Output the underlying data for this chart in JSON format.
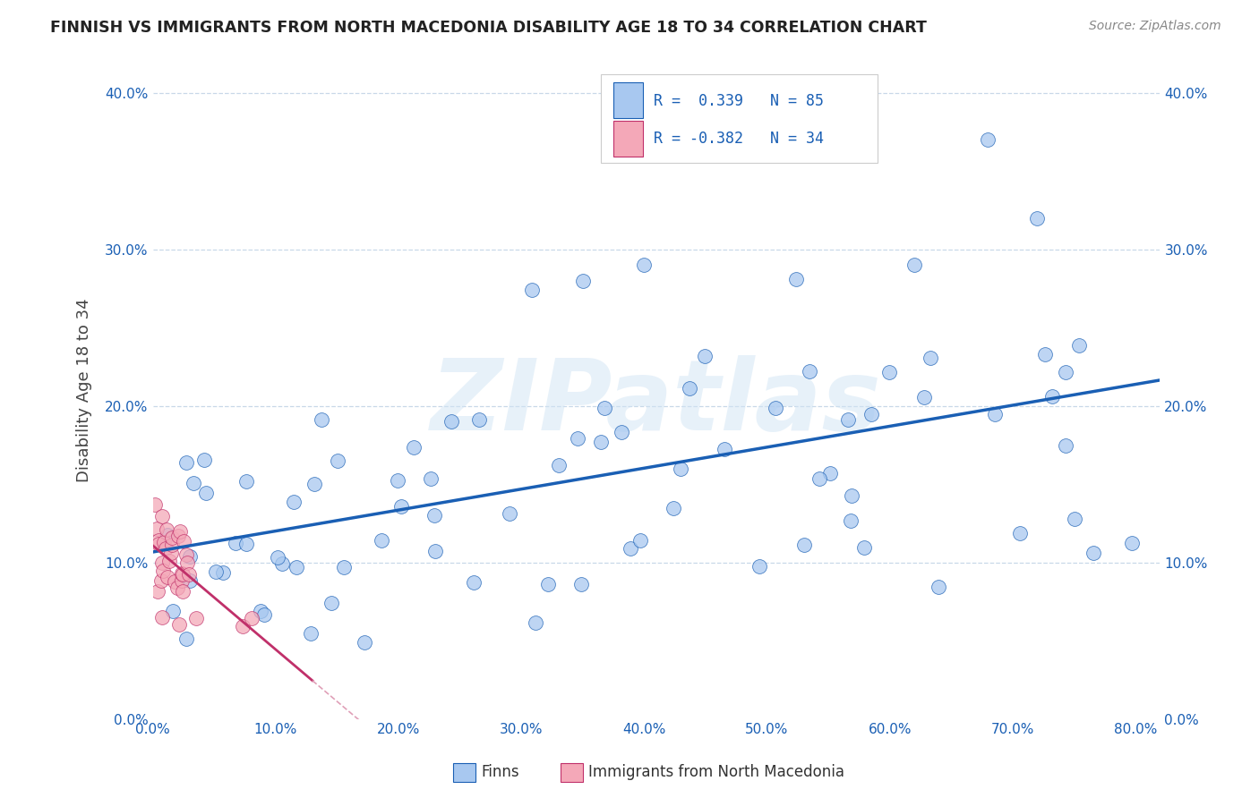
{
  "title": "FINNISH VS IMMIGRANTS FROM NORTH MACEDONIA DISABILITY AGE 18 TO 34 CORRELATION CHART",
  "source": "Source: ZipAtlas.com",
  "ylabel": "Disability Age 18 to 34",
  "xlim": [
    0.0,
    0.82
  ],
  "ylim": [
    0.0,
    0.42
  ],
  "color_blue": "#a8c8f0",
  "color_pink": "#f4a8b8",
  "line_blue": "#1a5fb4",
  "line_pink": "#c0306a",
  "line_pink_dashed": "#e0a0b8",
  "watermark": "ZIPatlas",
  "legend_text_color": "#1a5fb4",
  "background_color": "#ffffff",
  "grid_color": "#c8d8e8",
  "title_color": "#222222",
  "source_color": "#888888",
  "ylabel_color": "#444444"
}
